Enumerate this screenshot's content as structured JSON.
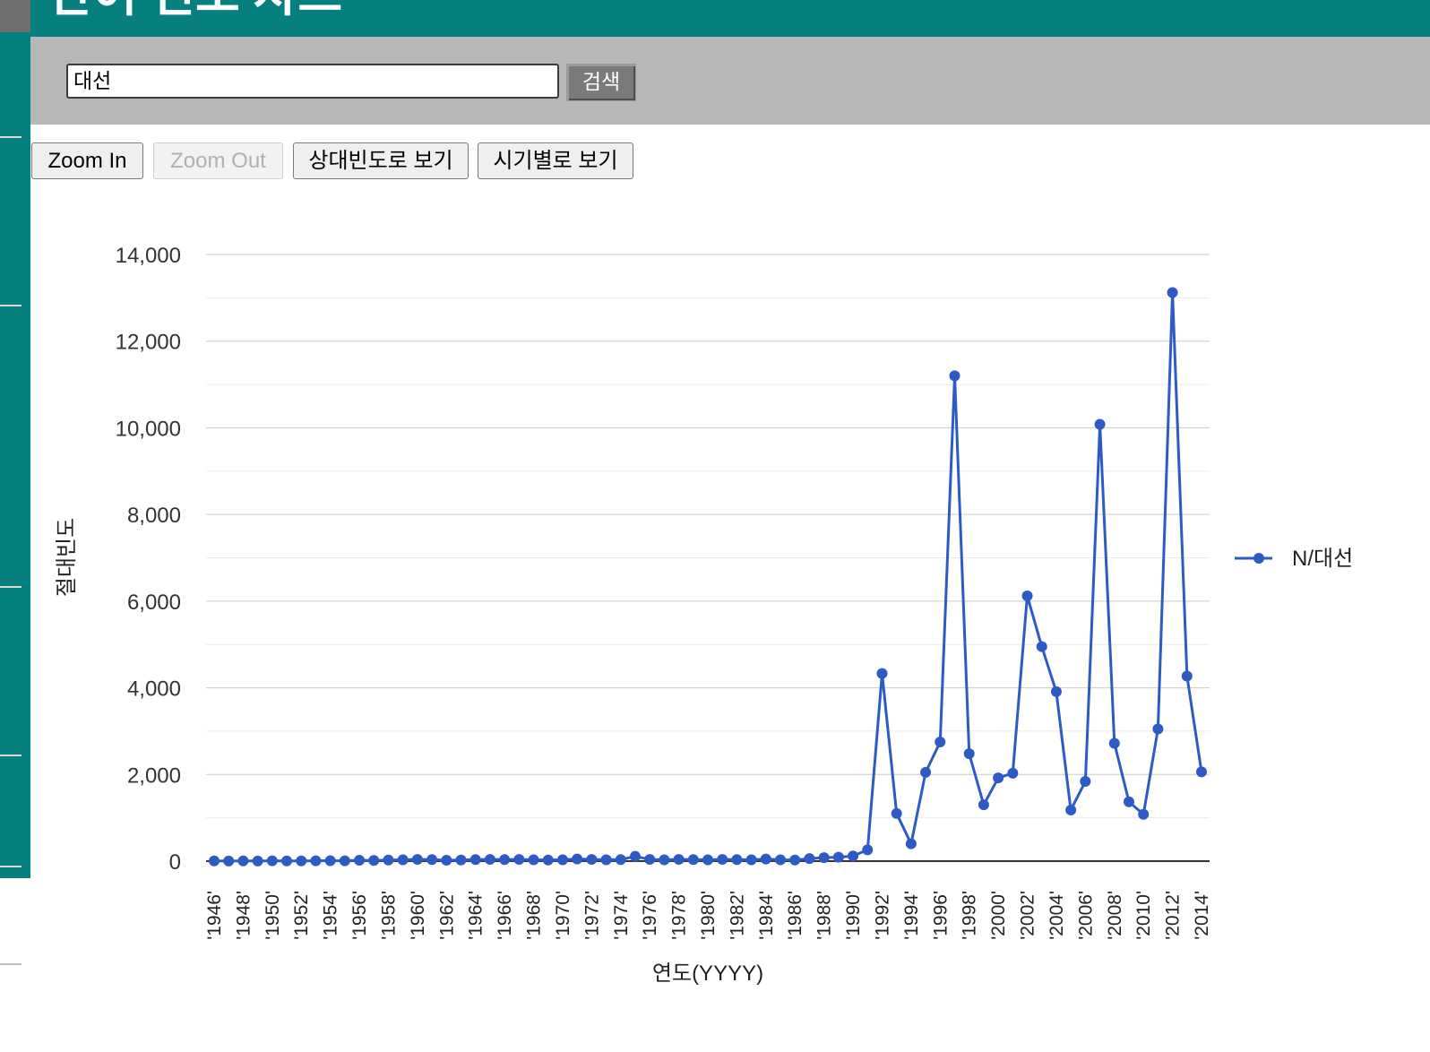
{
  "header": {
    "title": "단어 빈도 차트"
  },
  "search": {
    "value": "대선",
    "button_label": "검색"
  },
  "toolbar": {
    "zoom_in_label": "Zoom In",
    "zoom_out_label": "Zoom Out",
    "relative_freq_label": "상대빈도로 보기",
    "by_period_label": "시기별로 보기"
  },
  "colors": {
    "teal": "#067f7f",
    "series": "#2d5bc6",
    "search_bar": "#b7b7b7"
  },
  "chart_data": {
    "type": "line",
    "title": "",
    "xlabel": "연도(YYYY)",
    "ylabel": "절대빈도",
    "ylim": [
      0,
      14000
    ],
    "y_ticks": [
      0,
      2000,
      4000,
      6000,
      8000,
      10000,
      12000,
      14000
    ],
    "y_tick_labels": [
      "0",
      "2,000",
      "4,000",
      "6,000",
      "8,000",
      "10,000",
      "12,000",
      "14,000"
    ],
    "grid": true,
    "legend_position": "right",
    "x": [
      "'1946'",
      "'1947'",
      "'1948'",
      "'1949'",
      "'1950'",
      "'1951'",
      "'1952'",
      "'1953'",
      "'1954'",
      "'1955'",
      "'1956'",
      "'1957'",
      "'1958'",
      "'1959'",
      "'1960'",
      "'1961'",
      "'1962'",
      "'1963'",
      "'1964'",
      "'1965'",
      "'1966'",
      "'1967'",
      "'1968'",
      "'1969'",
      "'1970'",
      "'1971'",
      "'1972'",
      "'1973'",
      "'1974'",
      "'1975'",
      "'1976'",
      "'1977'",
      "'1978'",
      "'1979'",
      "'1980'",
      "'1981'",
      "'1982'",
      "'1983'",
      "'1984'",
      "'1985'",
      "'1986'",
      "'1987'",
      "'1988'",
      "'1989'",
      "'1990'",
      "'1991'",
      "'1992'",
      "'1993'",
      "'1994'",
      "'1995'",
      "'1996'",
      "'1997'",
      "'1998'",
      "'1999'",
      "'2000'",
      "'2001'",
      "'2002'",
      "'2003'",
      "'2004'",
      "'2005'",
      "'2006'",
      "'2007'",
      "'2008'",
      "'2009'",
      "'2010'",
      "'2011'",
      "'2012'",
      "'2013'",
      "'2014'"
    ],
    "x_tick_labels": [
      "'1946'",
      "'1948'",
      "'1950'",
      "'1952'",
      "'1954'",
      "'1956'",
      "'1958'",
      "'1960'",
      "'1962'",
      "'1964'",
      "'1966'",
      "'1968'",
      "'1970'",
      "'1972'",
      "'1974'",
      "'1976'",
      "'1978'",
      "'1980'",
      "'1982'",
      "'1984'",
      "'1986'",
      "'1988'",
      "'1990'",
      "'1992'",
      "'1994'",
      "'1996'",
      "'1998'",
      "'2000'",
      "'2002'",
      "'2004'",
      "'2006'",
      "'2008'",
      "'2010'",
      "'2012'",
      "'2014'"
    ],
    "series": [
      {
        "name": "N/대선",
        "color": "#2d5bc6",
        "values": [
          5,
          3,
          5,
          2,
          8,
          5,
          5,
          8,
          10,
          8,
          20,
          15,
          25,
          30,
          40,
          35,
          20,
          25,
          35,
          40,
          35,
          40,
          30,
          25,
          30,
          50,
          40,
          30,
          35,
          110,
          40,
          30,
          40,
          35,
          30,
          40,
          35,
          30,
          50,
          30,
          25,
          60,
          80,
          90,
          120,
          260,
          4330,
          1100,
          400,
          2050,
          2750,
          11200,
          2480,
          1300,
          1920,
          2030,
          6120,
          4950,
          3910,
          1180,
          1840,
          10080,
          2720,
          1370,
          1080,
          3050,
          13120,
          4270,
          2060
        ]
      }
    ]
  }
}
